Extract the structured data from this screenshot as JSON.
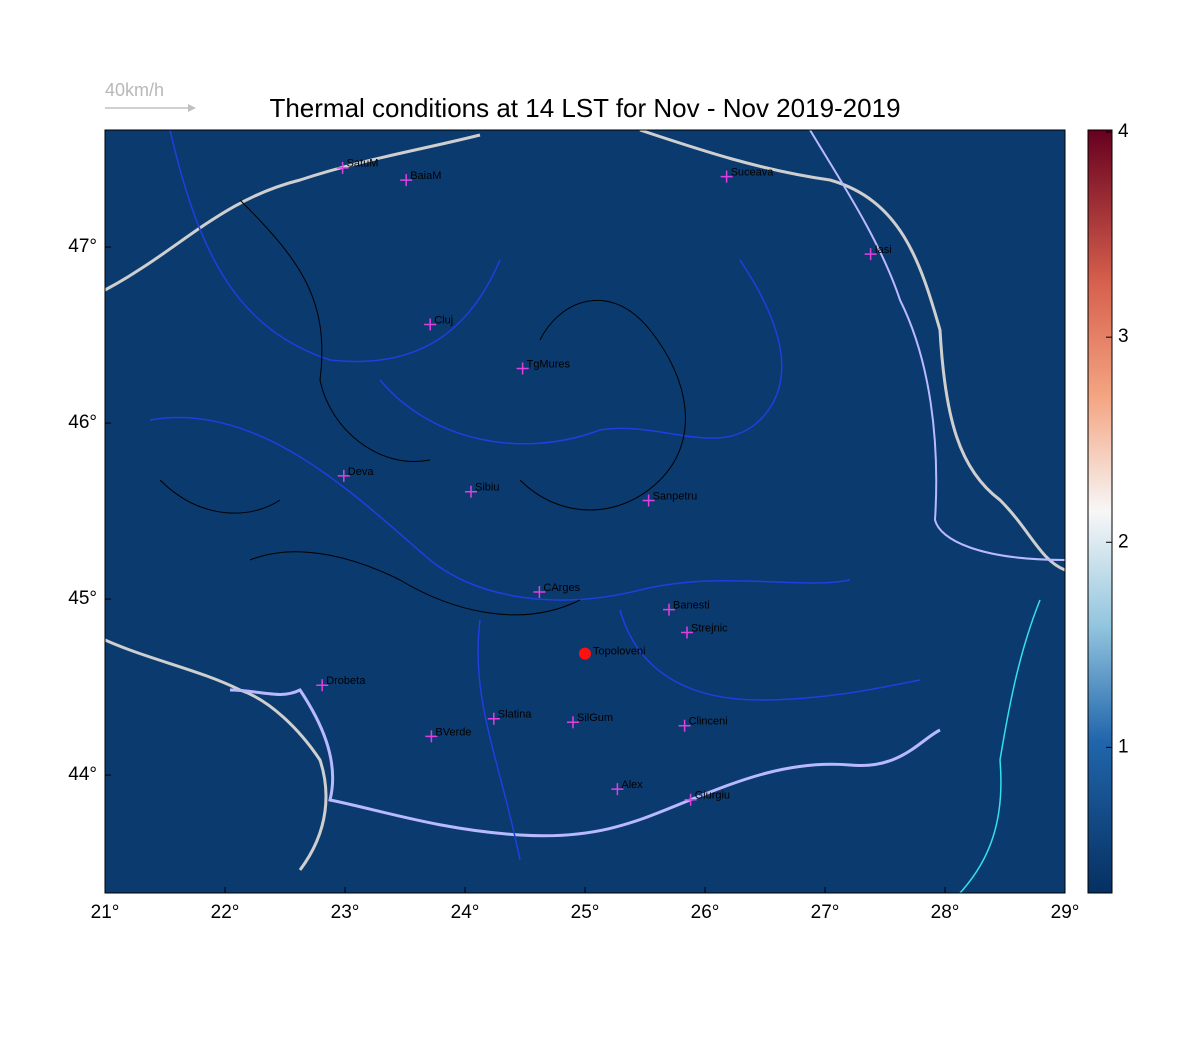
{
  "title": "Thermal conditions at 14 LST for Nov - Nov  2019-2019",
  "wind_scale_label": "40km/h",
  "map": {
    "lonlim": [
      21,
      29
    ],
    "latlim": [
      43.33,
      47.665
    ],
    "lonticks": [
      {
        "value": 21,
        "label": "21°"
      },
      {
        "value": 22,
        "label": "22°"
      },
      {
        "value": 23,
        "label": "23°"
      },
      {
        "value": 24,
        "label": "24°"
      },
      {
        "value": 25,
        "label": "25°"
      },
      {
        "value": 26,
        "label": "26°"
      },
      {
        "value": 27,
        "label": "27°"
      },
      {
        "value": 28,
        "label": "28°"
      },
      {
        "value": 29,
        "label": "29°"
      }
    ],
    "latticks": [
      {
        "value": 44,
        "label": "44°"
      },
      {
        "value": 45,
        "label": "45°"
      },
      {
        "value": 46,
        "label": "46°"
      },
      {
        "value": 47,
        "label": "47°"
      }
    ]
  },
  "colorbar": {
    "lim": [
      0.29,
      4.01
    ],
    "ticks": [
      1,
      2,
      3,
      4
    ]
  },
  "stations": [
    {
      "name": "SatuM",
      "lon": 22.98,
      "lat": 47.45
    },
    {
      "name": "BaiaM",
      "lon": 23.51,
      "lat": 47.38
    },
    {
      "name": "Suceava",
      "lon": 26.18,
      "lat": 47.4
    },
    {
      "name": "Iasi",
      "lon": 27.38,
      "lat": 46.96
    },
    {
      "name": "Cluj",
      "lon": 23.71,
      "lat": 46.56
    },
    {
      "name": "TgMures",
      "lon": 24.48,
      "lat": 46.31
    },
    {
      "name": "Deva",
      "lon": 22.99,
      "lat": 45.7
    },
    {
      "name": "Sibiu",
      "lon": 24.05,
      "lat": 45.61
    },
    {
      "name": "Sanpetru",
      "lon": 25.53,
      "lat": 45.56
    },
    {
      "name": "CArges",
      "lon": 24.62,
      "lat": 45.04
    },
    {
      "name": "Banesti",
      "lon": 25.7,
      "lat": 44.94
    },
    {
      "name": "Strejnic",
      "lon": 25.85,
      "lat": 44.81
    },
    {
      "name": "Drobeta",
      "lon": 22.81,
      "lat": 44.51
    },
    {
      "name": "Slatina",
      "lon": 24.24,
      "lat": 44.32
    },
    {
      "name": "SilGum",
      "lon": 24.9,
      "lat": 44.3
    },
    {
      "name": "Clinceni",
      "lon": 25.83,
      "lat": 44.28
    },
    {
      "name": "BVerde",
      "lon": 23.72,
      "lat": 44.22
    },
    {
      "name": "Alex",
      "lon": 25.27,
      "lat": 43.92
    },
    {
      "name": "Giurgiu",
      "lon": 25.88,
      "lat": 43.86
    }
  ],
  "highlight": {
    "name": "Topoloveni",
    "lon": 25.0,
    "lat": 44.69
  }
}
